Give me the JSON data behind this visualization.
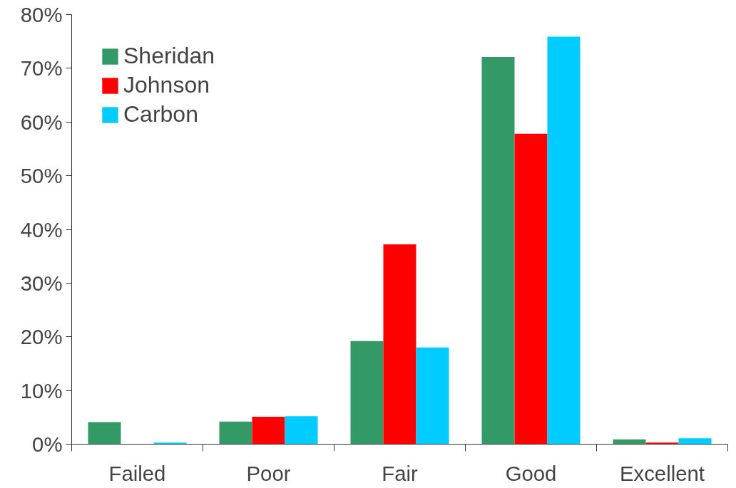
{
  "chart_data": {
    "type": "bar",
    "categories": [
      "Failed",
      "Poor",
      "Fair",
      "Good",
      "Excellent"
    ],
    "series": [
      {
        "name": "Sheridan",
        "color": "#339966",
        "values": [
          4.1,
          4.2,
          19.2,
          72.1,
          0.9
        ]
      },
      {
        "name": "Johnson",
        "color": "#ff0000",
        "values": [
          0,
          5.1,
          37.2,
          57.8,
          0.3
        ]
      },
      {
        "name": "Carbon",
        "color": "#00ccff",
        "values": [
          0.3,
          5.2,
          18.0,
          75.9,
          1.1
        ]
      }
    ],
    "ylim": [
      0,
      80
    ],
    "yticks": [
      {
        "value": 0,
        "label": "0%"
      },
      {
        "value": 10,
        "label": "10%"
      },
      {
        "value": 20,
        "label": "20%"
      },
      {
        "value": 30,
        "label": "30%"
      },
      {
        "value": 40,
        "label": "40%"
      },
      {
        "value": 50,
        "label": "50%"
      },
      {
        "value": 60,
        "label": "60%"
      },
      {
        "value": 70,
        "label": "70%"
      },
      {
        "value": 80,
        "label": "80%"
      }
    ],
    "grid": false,
    "legend": "top left"
  }
}
